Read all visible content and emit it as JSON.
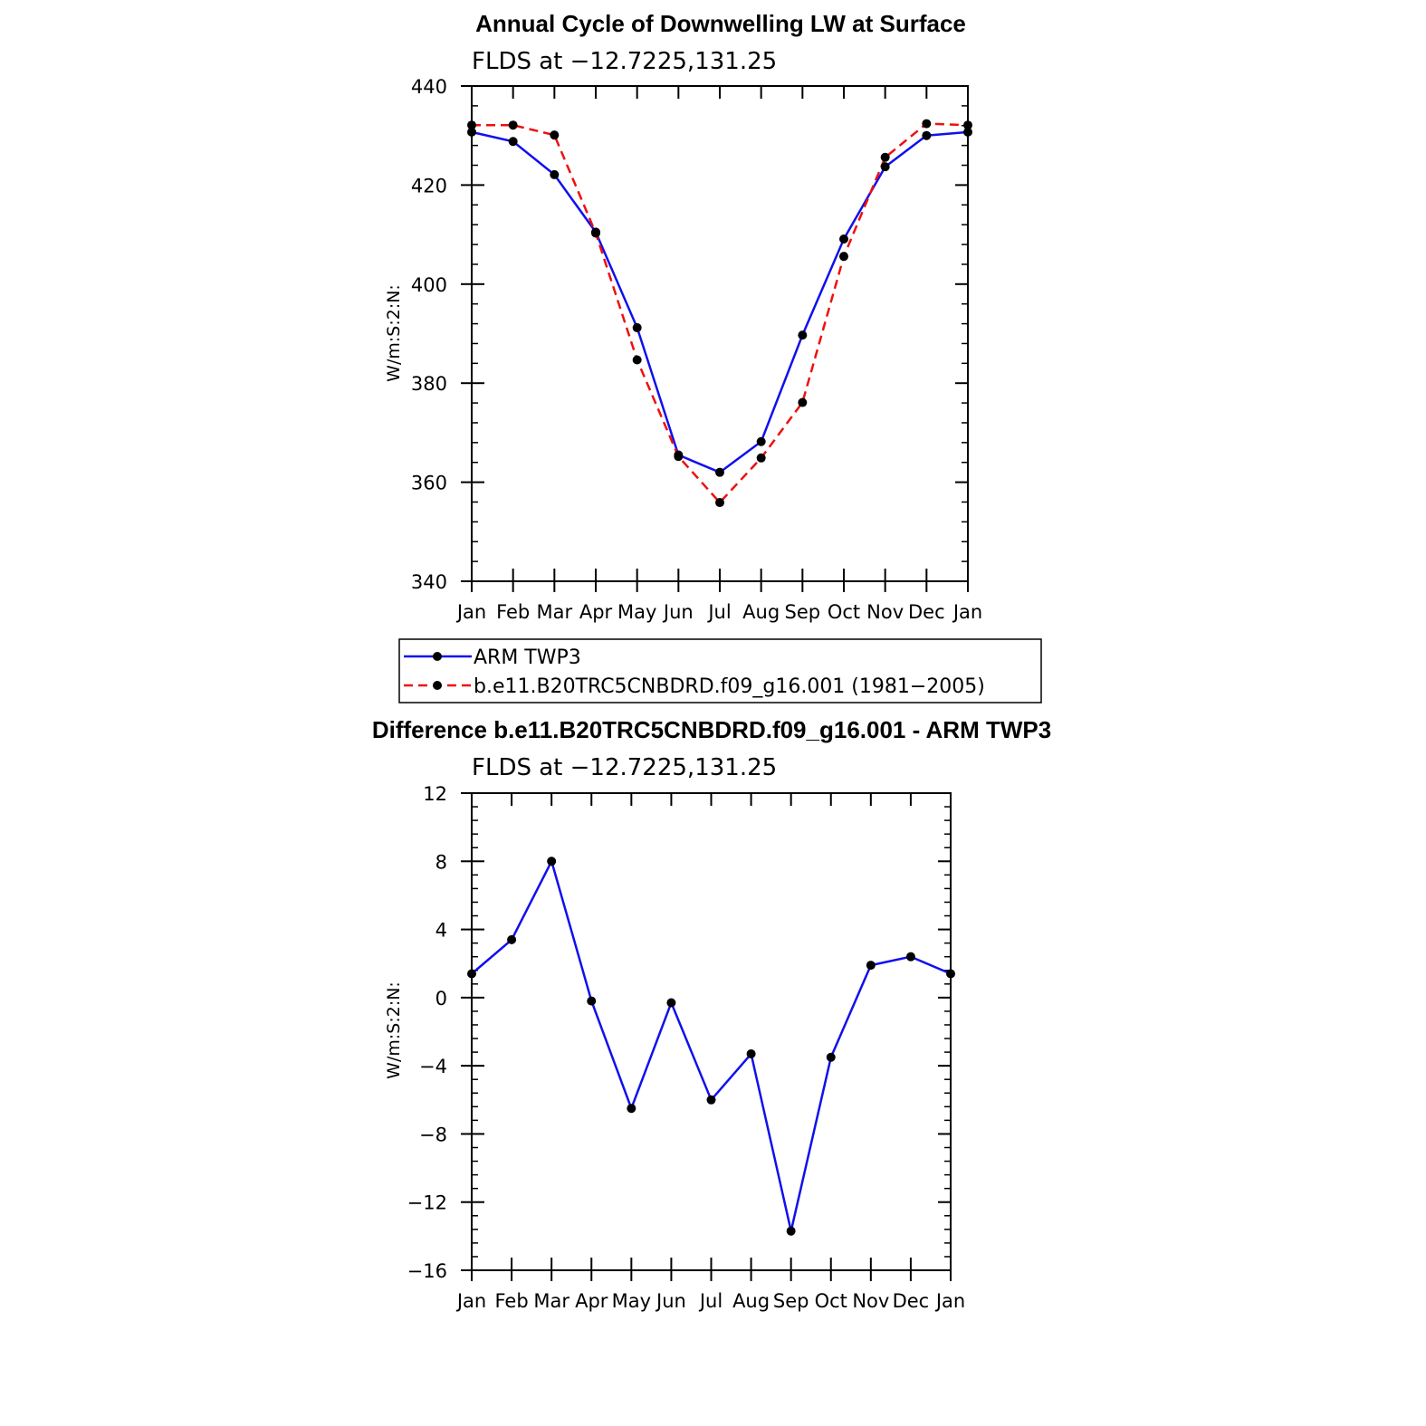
{
  "chart_data": [
    {
      "type": "line",
      "title": "Annual Cycle of Downwelling LW at Surface",
      "subtitle": "FLDS at −12.7225,131.25",
      "ylabel": "W/m:S:2:N:",
      "xlabel": "",
      "categories": [
        "Jan",
        "Feb",
        "Mar",
        "Apr",
        "May",
        "Jun",
        "Jul",
        "Aug",
        "Sep",
        "Oct",
        "Nov",
        "Dec",
        "Jan"
      ],
      "ylim": [
        340,
        440
      ],
      "yticks": [
        340,
        360,
        380,
        400,
        420,
        440
      ],
      "yticks_labels": [
        "340",
        "360",
        "380",
        "400",
        "420",
        "440"
      ],
      "series": [
        {
          "name": "ARM TWP3",
          "color": "#1010ee",
          "dash": "solid",
          "values": [
            430.7,
            428.8,
            422.1,
            410.5,
            391.2,
            365.5,
            362.0,
            368.2,
            389.7,
            409.1,
            423.7,
            430.0,
            430.7
          ]
        },
        {
          "name": "b.e11.B20TRC5CNBDRD.f09_g16.001 (1981−2005)",
          "color": "#ee1010",
          "dash": "dashed",
          "values": [
            432.1,
            432.1,
            430.1,
            410.3,
            384.7,
            365.2,
            355.9,
            364.9,
            376.1,
            405.6,
            425.6,
            432.4,
            432.1
          ]
        }
      ],
      "grid": false,
      "legend": "below"
    },
    {
      "type": "line",
      "title": "Difference b.e11.B20TRC5CNBDRD.f09_g16.001 - ARM TWP3",
      "subtitle": "FLDS at −12.7225,131.25",
      "ylabel": "W/m:S:2:N:",
      "xlabel": "",
      "categories": [
        "Jan",
        "Feb",
        "Mar",
        "Apr",
        "May",
        "Jun",
        "Jul",
        "Aug",
        "Sep",
        "Oct",
        "Nov",
        "Dec",
        "Jan"
      ],
      "ylim": [
        -16,
        12
      ],
      "yticks": [
        -16,
        -12,
        -8,
        -4,
        0,
        4,
        8,
        12
      ],
      "yticks_labels": [
        "−16",
        "−12",
        "−8",
        "−4",
        "0",
        "4",
        "8",
        "12"
      ],
      "series": [
        {
          "name": "Difference",
          "color": "#1010ee",
          "dash": "solid",
          "values": [
            1.4,
            3.4,
            8.0,
            -0.2,
            -6.5,
            -0.3,
            -6.0,
            -3.3,
            -13.7,
            -3.5,
            1.9,
            2.4,
            1.4
          ]
        }
      ],
      "grid": false,
      "legend": "none"
    }
  ]
}
